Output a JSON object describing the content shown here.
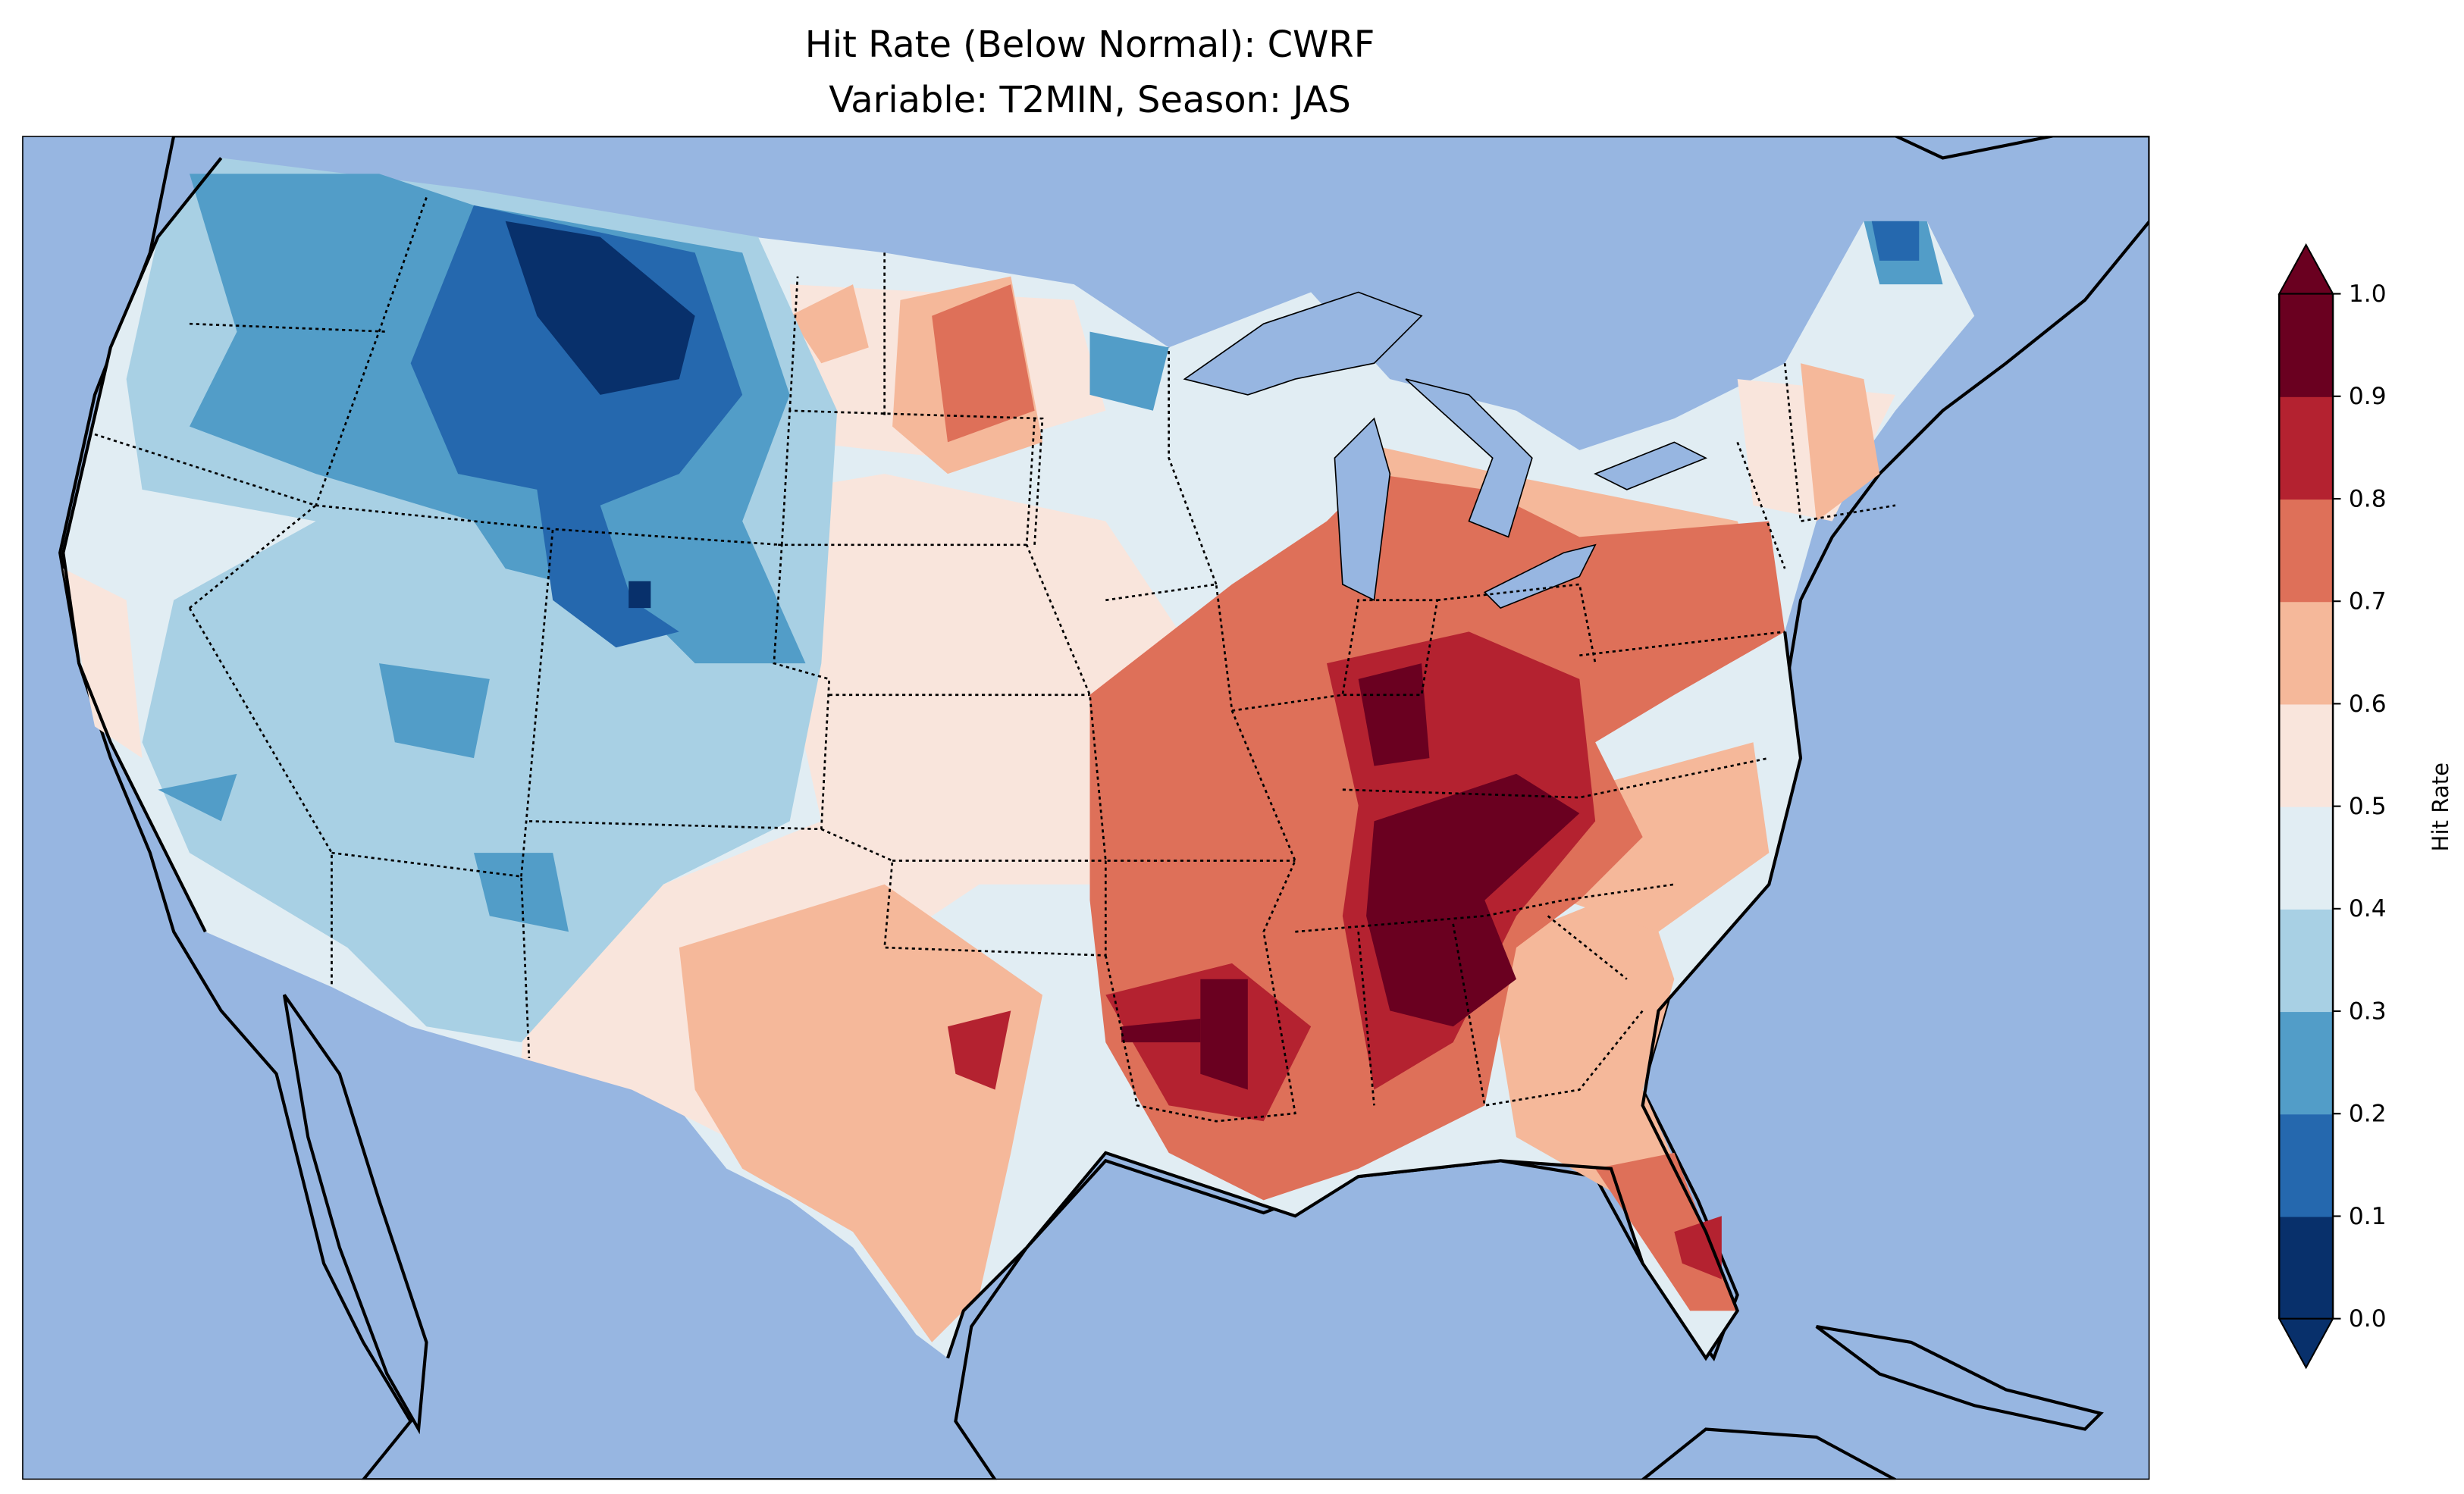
{
  "chart_data": {
    "type": "heatmap",
    "title": "Hit Rate (Below Normal): CWRF",
    "subtitle": "Variable: T2MIN, Season: JAS",
    "colorbar_label": "Hit Rate",
    "colorbar_ticks": [
      "0.0",
      "0.1",
      "0.2",
      "0.3",
      "0.4",
      "0.5",
      "0.6",
      "0.7",
      "0.8",
      "0.9",
      "1.0"
    ],
    "levels": [
      0.0,
      0.1,
      0.2,
      0.3,
      0.4,
      0.5,
      0.6,
      0.7,
      0.8,
      0.9,
      1.0
    ],
    "level_colors": [
      "#08306b",
      "#2568ae",
      "#529dc8",
      "#a8d0e4",
      "#e1edf3",
      "#f9e5dc",
      "#f5b89a",
      "#de7059",
      "#b42230",
      "#6a0020"
    ],
    "extend": "both",
    "vmin": 0.0,
    "vmax": 1.0,
    "ocean_color": "#97b6e1",
    "land_color": "#efedda"
  }
}
